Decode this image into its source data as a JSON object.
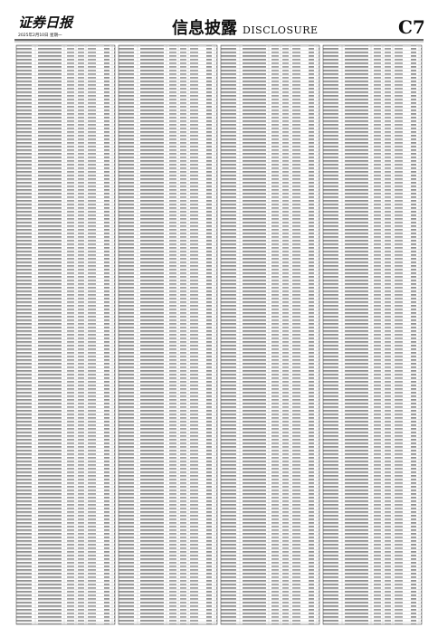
{
  "header": {
    "logo": "证券日报",
    "date": "2025年2月10日 星期一",
    "section": "信息披露",
    "section_en": "DISCLOSURE",
    "page": "C7"
  }
}
